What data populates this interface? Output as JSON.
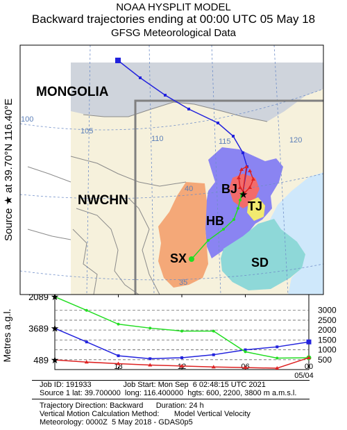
{
  "header": {
    "title": "NOAA HYSPLIT MODEL",
    "subtitle": "Backward trajectories ending at 00:00 UTC 05 May 18",
    "data_source": "GFSG Meteorological Data"
  },
  "source_label": "Source ★ at 39.70°N 116.40°E",
  "map": {
    "regions": {
      "mongolia": "MONGOLIA",
      "nwchn": "NWCHN",
      "bj": "BJ",
      "tj": "TJ",
      "hb": "HB",
      "sx": "SX",
      "sd": "SD"
    },
    "longitude_labels": [
      "100",
      "105",
      "110",
      "115",
      "120"
    ],
    "latitude_labels": [
      "40",
      "35"
    ],
    "colors": {
      "mongolia": "#cfd4dc",
      "hebei": "#8a84f2",
      "beijing": "#f26b6b",
      "tianjin": "#f2ea70",
      "shanxi": "#f4a878",
      "shandong": "#8ed8d8",
      "sea": "#cfe8fb",
      "other_land": "#f6f1dc"
    }
  },
  "chart_data": {
    "type": "line",
    "ylabel": "Metres a.g.l.",
    "x_tick_labels": [
      "18",
      "12",
      "06",
      "00"
    ],
    "x_sub_label": "05/04",
    "x_hours_before_end": [
      -24,
      -21,
      -18,
      -15,
      -12,
      -9,
      -6,
      -3,
      0
    ],
    "y_right_ticks": [
      500,
      1000,
      1500,
      2000,
      2500,
      3000
    ],
    "y_left_labels": [
      "3689",
      "2089",
      "489"
    ],
    "ylim": [
      0,
      3800
    ],
    "series": [
      {
        "color": "#2222dd",
        "heights": [
          2089,
          1400,
          700,
          550,
          600,
          750,
          1000,
          1150,
          1400
        ]
      },
      {
        "color": "#22dd22",
        "heights": [
          3689,
          3000,
          2300,
          2100,
          1950,
          1950,
          900,
          580,
          600
        ]
      },
      {
        "color": "#dd2222",
        "heights": [
          489,
          380,
          300,
          230,
          180,
          130,
          100,
          70,
          600
        ]
      }
    ],
    "map_tracks": [
      {
        "color": "#2222dd",
        "points": [
          [
            170,
            87
          ],
          [
            202,
            112
          ],
          [
            238,
            137
          ],
          [
            272,
            157
          ],
          [
            314,
            177
          ],
          [
            336,
            196
          ],
          [
            350,
            220
          ],
          [
            356,
            240
          ],
          [
            350,
            277
          ]
        ]
      },
      {
        "color": "#22dd22",
        "points": [
          [
            276,
            373
          ],
          [
            300,
            346
          ],
          [
            322,
            330
          ],
          [
            337,
            316
          ],
          [
            343,
            300
          ],
          [
            346,
            288
          ],
          [
            348,
            282
          ],
          [
            349,
            279
          ],
          [
            350,
            277
          ]
        ]
      },
      {
        "color": "#dd2222",
        "points": [
          [
            360,
            246
          ],
          [
            365,
            258
          ],
          [
            360,
            270
          ],
          [
            352,
            278
          ],
          [
            346,
            270
          ],
          [
            344,
            256
          ],
          [
            348,
            244
          ],
          [
            355,
            240
          ],
          [
            350,
            277
          ]
        ]
      }
    ]
  },
  "footer": {
    "line1": "Job ID: 191933               Job Start: Mon Sep  6 02:48:15 UTC 2021",
    "line2": "Source 1 lat: 39.700000  long: 116.400000  hgts: 600, 2200, 3800 m a.m.s.l.",
    "line3": "Trajectory Direction: Backward      Duration: 24 h",
    "line4": "Vertical Motion Calculation Method:       Model Vertical Velocity",
    "line5": "Meteorology: 0000Z  5 May 2018 - GDAS0p5"
  }
}
